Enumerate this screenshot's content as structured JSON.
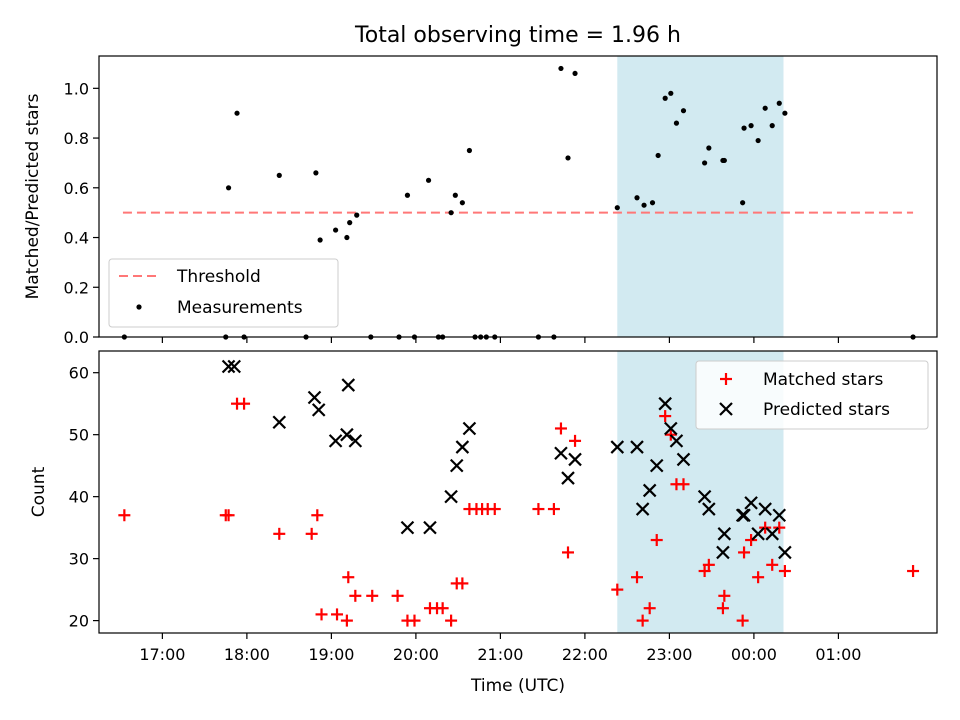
{
  "chart_data": [
    {
      "type": "scatter",
      "title": "Total observing time = 1.96 h",
      "xlabel": "",
      "ylabel": "Matched/Predicted stars",
      "ylim": [
        0,
        1.13
      ],
      "xlim": [
        "16:15",
        "02:10"
      ],
      "y_ticks": [
        "0.0",
        "0.2",
        "0.4",
        "0.6",
        "0.8",
        "1.0"
      ],
      "y_tick_values": [
        0,
        0.2,
        0.4,
        0.6,
        0.8,
        1.0
      ],
      "highlight_span": {
        "x": [
          "22:23",
          "00:21"
        ],
        "color": "#add8e6"
      },
      "threshold": {
        "name": "Threshold",
        "value": 0.5,
        "x": [
          "16:32",
          "01:53"
        ],
        "color": "#ff7777"
      },
      "series": [
        {
          "name": "Measurements",
          "color": "#000000",
          "marker": "dot",
          "points": [
            [
              "16:33",
              0
            ],
            [
              "17:45",
              0
            ],
            [
              "17:47",
              0.6
            ],
            [
              "17:53",
              0.9
            ],
            [
              "17:58",
              0
            ],
            [
              "18:23",
              0.65
            ],
            [
              "18:42",
              0
            ],
            [
              "18:49",
              0.66
            ],
            [
              "18:52",
              0.39
            ],
            [
              "19:03",
              0.43
            ],
            [
              "19:11",
              0.4
            ],
            [
              "19:13",
              0.46
            ],
            [
              "19:18",
              0.49
            ],
            [
              "19:28",
              0
            ],
            [
              "19:48",
              0
            ],
            [
              "19:54",
              0.57
            ],
            [
              "19:59",
              0
            ],
            [
              "20:09",
              0.63
            ],
            [
              "20:16",
              0
            ],
            [
              "20:19",
              0
            ],
            [
              "20:25",
              0.5
            ],
            [
              "20:28",
              0.57
            ],
            [
              "20:33",
              0.54
            ],
            [
              "20:38",
              0.75
            ],
            [
              "20:42",
              0
            ],
            [
              "20:46",
              0
            ],
            [
              "20:50",
              0
            ],
            [
              "20:56",
              0
            ],
            [
              "21:27",
              0
            ],
            [
              "21:38",
              0
            ],
            [
              "21:43",
              1.08
            ],
            [
              "21:48",
              0.72
            ],
            [
              "21:53",
              1.06
            ],
            [
              "22:23",
              0.52
            ],
            [
              "22:37",
              0.56
            ],
            [
              "22:42",
              0.53
            ],
            [
              "22:48",
              0.54
            ],
            [
              "22:52",
              0.73
            ],
            [
              "22:57",
              0.96
            ],
            [
              "23:01",
              0.98
            ],
            [
              "23:05",
              0.86
            ],
            [
              "23:10",
              0.91
            ],
            [
              "23:25",
              0.7
            ],
            [
              "23:28",
              0.76
            ],
            [
              "23:38",
              0.71
            ],
            [
              "23:39",
              0.71
            ],
            [
              "23:52",
              0.54
            ],
            [
              "23:53",
              0.84
            ],
            [
              "23:58",
              0.85
            ],
            [
              "00:03",
              0.79
            ],
            [
              "00:08",
              0.92
            ],
            [
              "00:13",
              0.85
            ],
            [
              "00:18",
              0.94
            ],
            [
              "00:22",
              0.9
            ],
            [
              "01:53",
              0
            ]
          ]
        }
      ],
      "legend": {
        "placement": "lower-left",
        "entries": [
          "Threshold",
          "Measurements"
        ]
      }
    },
    {
      "type": "scatter",
      "xlabel": "Time (UTC)",
      "ylabel": "Count",
      "ylim": [
        18,
        63.5
      ],
      "xlim": [
        "16:15",
        "02:10"
      ],
      "x_ticks": [
        "17:00",
        "18:00",
        "19:00",
        "20:00",
        "21:00",
        "22:00",
        "23:00",
        "00:00",
        "01:00"
      ],
      "y_ticks": [
        "20",
        "30",
        "40",
        "50",
        "60"
      ],
      "y_tick_values": [
        20,
        30,
        40,
        50,
        60
      ],
      "highlight_span": {
        "x": [
          "22:23",
          "00:21"
        ],
        "color": "#add8e6"
      },
      "series": [
        {
          "name": "Matched stars",
          "color": "#ff0000",
          "marker": "plus",
          "points": [
            [
              "16:33",
              37
            ],
            [
              "17:45",
              37
            ],
            [
              "17:47",
              37
            ],
            [
              "17:53",
              55
            ],
            [
              "17:58",
              55
            ],
            [
              "18:23",
              34
            ],
            [
              "18:46",
              34
            ],
            [
              "18:50",
              37
            ],
            [
              "18:53",
              21
            ],
            [
              "19:04",
              21
            ],
            [
              "19:11",
              20
            ],
            [
              "19:12",
              27
            ],
            [
              "19:17",
              24
            ],
            [
              "19:29",
              24
            ],
            [
              "19:47",
              24
            ],
            [
              "19:54",
              20
            ],
            [
              "19:59",
              20
            ],
            [
              "20:10",
              22
            ],
            [
              "20:15",
              22
            ],
            [
              "20:19",
              22
            ],
            [
              "20:25",
              20
            ],
            [
              "20:29",
              26
            ],
            [
              "20:33",
              26
            ],
            [
              "20:38",
              38
            ],
            [
              "20:43",
              38
            ],
            [
              "20:47",
              38
            ],
            [
              "20:51",
              38
            ],
            [
              "20:56",
              38
            ],
            [
              "21:27",
              38
            ],
            [
              "21:38",
              38
            ],
            [
              "21:43",
              51
            ],
            [
              "21:48",
              31
            ],
            [
              "21:53",
              49
            ],
            [
              "22:23",
              25
            ],
            [
              "22:37",
              27
            ],
            [
              "22:41",
              20
            ],
            [
              "22:46",
              22
            ],
            [
              "22:51",
              33
            ],
            [
              "22:57",
              53
            ],
            [
              "23:01",
              50
            ],
            [
              "23:05",
              42
            ],
            [
              "23:10",
              42
            ],
            [
              "23:25",
              28
            ],
            [
              "23:28",
              29
            ],
            [
              "23:38",
              22
            ],
            [
              "23:39",
              24
            ],
            [
              "23:52",
              20
            ],
            [
              "23:53",
              31
            ],
            [
              "23:58",
              33
            ],
            [
              "00:03",
              27
            ],
            [
              "00:08",
              35
            ],
            [
              "00:13",
              29
            ],
            [
              "00:18",
              35
            ],
            [
              "00:22",
              28
            ],
            [
              "01:53",
              28
            ]
          ]
        },
        {
          "name": "Predicted stars",
          "color": "#000000",
          "marker": "x",
          "points": [
            [
              "17:47",
              61
            ],
            [
              "17:51",
              61
            ],
            [
              "18:23",
              52
            ],
            [
              "18:48",
              56
            ],
            [
              "18:51",
              54
            ],
            [
              "19:03",
              49
            ],
            [
              "19:11",
              50
            ],
            [
              "19:12",
              58
            ],
            [
              "19:17",
              49
            ],
            [
              "19:54",
              35
            ],
            [
              "20:10",
              35
            ],
            [
              "20:25",
              40
            ],
            [
              "20:29",
              45
            ],
            [
              "20:33",
              48
            ],
            [
              "20:38",
              51
            ],
            [
              "21:43",
              47
            ],
            [
              "21:48",
              43
            ],
            [
              "21:53",
              46
            ],
            [
              "22:23",
              48
            ],
            [
              "22:37",
              48
            ],
            [
              "22:41",
              38
            ],
            [
              "22:46",
              41
            ],
            [
              "22:51",
              45
            ],
            [
              "22:57",
              55
            ],
            [
              "23:01",
              51
            ],
            [
              "23:05",
              49
            ],
            [
              "23:10",
              46
            ],
            [
              "23:25",
              40
            ],
            [
              "23:28",
              38
            ],
            [
              "23:38",
              31
            ],
            [
              "23:39",
              34
            ],
            [
              "23:52",
              37
            ],
            [
              "23:53",
              37
            ],
            [
              "23:58",
              39
            ],
            [
              "00:03",
              34
            ],
            [
              "00:08",
              38
            ],
            [
              "00:13",
              34
            ],
            [
              "00:18",
              37
            ],
            [
              "00:22",
              31
            ]
          ]
        }
      ],
      "legend": {
        "placement": "upper-right",
        "entries": [
          "Matched stars",
          "Predicted stars"
        ]
      }
    }
  ]
}
